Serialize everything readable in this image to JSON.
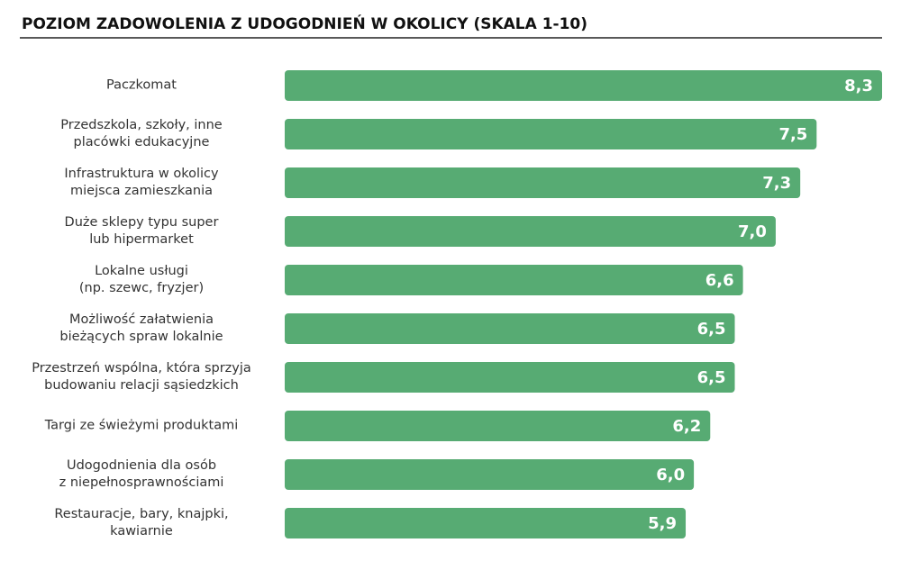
{
  "chart_data": {
    "type": "hbar",
    "title": "POZIOM ZADOWOLENIA Z UDOGODNIEŃ W OKOLICY (SKALA 1-10)",
    "categories": [
      "Paczkomat",
      "Przedszkola, szkoły, inne\nplacówki edukacyjne",
      "Infrastruktura w okolicy\nmiejsca zamieszkania",
      "Duże sklepy typu super\nlub hipermarket",
      "Lokalne usługi\n(np. szewc, fryzjer)",
      "Możliwość załatwienia\nbieżących spraw lokalnie",
      "Przestrzeń wspólna, która sprzyja\nbudowaniu relacji sąsiedzkich",
      "Targi ze świeżymi produktami",
      "Udogodnienia dla osób\nz niepełnosprawnościami",
      "Restauracje, bary, knajpki,\nkawiarnie"
    ],
    "values": [
      8.3,
      7.5,
      7.3,
      7.0,
      6.6,
      6.5,
      6.5,
      6.2,
      6.0,
      5.9
    ],
    "value_labels": [
      "8,3",
      "7,5",
      "7,3",
      "7,0",
      "6,6",
      "6,5",
      "6,5",
      "6,2",
      "6,0",
      "5,9"
    ],
    "color": "#57ab73",
    "xlim": [
      1,
      8.3
    ]
  }
}
